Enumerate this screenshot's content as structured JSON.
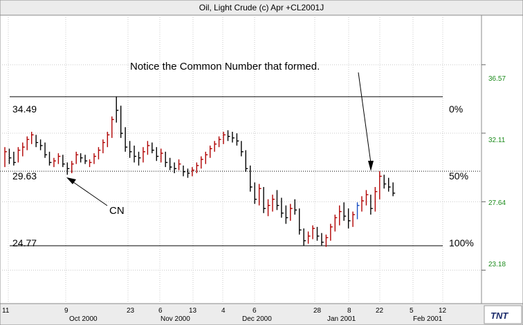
{
  "chart_data": {
    "type": "ohlc",
    "title": "Oil, Light Crude (c) Apr +CL2001J",
    "y_ticks": [
      "36.57",
      "32.11",
      "27.64",
      "23.18"
    ],
    "ylim": [
      21.0,
      39.8
    ],
    "x_day_labels": [
      "11",
      "9",
      "23",
      "6",
      "13",
      "4",
      "6",
      "28",
      "8",
      "22",
      "5",
      "12"
    ],
    "x_month_labels": [
      "Oct 2000",
      "Nov 2000",
      "Dec 2000",
      "Jan 2001",
      "Feb 2001"
    ],
    "grid": true,
    "levels": [
      {
        "value_label": "34.49",
        "percent_label": "0%",
        "value": 34.49,
        "style": "solid"
      },
      {
        "value_label": "29.63",
        "percent_label": "50%",
        "value": 29.63,
        "style": "dotted"
      },
      {
        "value_label": "24.77",
        "percent_label": "100%",
        "value": 24.77,
        "style": "solid"
      }
    ],
    "annotations": [
      {
        "text": "Notice the Common Number that formed.",
        "target": "Jan 2001 swing high at 29.63"
      },
      {
        "text": "CN",
        "target": "late Sep 2000 low at 29.63"
      }
    ],
    "series": [
      {
        "bars": [
          {
            "h": 31.2,
            "l": 29.9,
            "c": 30.9,
            "d": 1
          },
          {
            "h": 31.1,
            "l": 30.1,
            "c": 30.5,
            "d": 0
          },
          {
            "h": 30.9,
            "l": 30.0,
            "c": 30.2,
            "d": 0
          },
          {
            "h": 31.2,
            "l": 30.2,
            "c": 31.0,
            "d": 1
          },
          {
            "h": 31.5,
            "l": 30.6,
            "c": 31.2,
            "d": 1
          },
          {
            "h": 31.9,
            "l": 31.0,
            "c": 31.7,
            "d": 1
          },
          {
            "h": 32.2,
            "l": 31.4,
            "c": 32.0,
            "d": 1
          },
          {
            "h": 32.0,
            "l": 31.2,
            "c": 31.5,
            "d": 0
          },
          {
            "h": 31.7,
            "l": 31.0,
            "c": 31.3,
            "d": 0
          },
          {
            "h": 31.5,
            "l": 30.5,
            "c": 30.7,
            "d": 0
          },
          {
            "h": 30.9,
            "l": 30.0,
            "c": 30.2,
            "d": 0
          },
          {
            "h": 30.5,
            "l": 29.9,
            "c": 30.3,
            "d": 1
          },
          {
            "h": 30.8,
            "l": 30.1,
            "c": 30.6,
            "d": 1
          },
          {
            "h": 30.7,
            "l": 29.9,
            "c": 30.1,
            "d": 0
          },
          {
            "h": 30.2,
            "l": 29.4,
            "c": 29.8,
            "d": 0
          },
          {
            "h": 30.3,
            "l": 29.5,
            "c": 30.1,
            "d": 1
          },
          {
            "h": 30.9,
            "l": 30.1,
            "c": 30.7,
            "d": 1
          },
          {
            "h": 30.8,
            "l": 30.2,
            "c": 30.5,
            "d": 0
          },
          {
            "h": 30.7,
            "l": 30.1,
            "c": 30.3,
            "d": 0
          },
          {
            "h": 30.4,
            "l": 29.9,
            "c": 30.2,
            "d": 1
          },
          {
            "h": 30.8,
            "l": 30.1,
            "c": 30.6,
            "d": 1
          },
          {
            "h": 31.2,
            "l": 30.4,
            "c": 31.0,
            "d": 1
          },
          {
            "h": 31.7,
            "l": 30.8,
            "c": 31.5,
            "d": 1
          },
          {
            "h": 32.2,
            "l": 31.2,
            "c": 32.0,
            "d": 1
          },
          {
            "h": 33.2,
            "l": 31.8,
            "c": 33.0,
            "d": 1
          },
          {
            "h": 34.49,
            "l": 32.8,
            "c": 33.6,
            "d": 0
          },
          {
            "h": 33.9,
            "l": 31.8,
            "c": 32.1,
            "d": 0
          },
          {
            "h": 32.5,
            "l": 30.9,
            "c": 31.2,
            "d": 0
          },
          {
            "h": 31.6,
            "l": 30.5,
            "c": 30.9,
            "d": 0
          },
          {
            "h": 31.3,
            "l": 30.2,
            "c": 30.6,
            "d": 0
          },
          {
            "h": 30.9,
            "l": 30.0,
            "c": 30.5,
            "d": 0
          },
          {
            "h": 31.2,
            "l": 30.2,
            "c": 30.9,
            "d": 1
          },
          {
            "h": 31.6,
            "l": 30.7,
            "c": 31.3,
            "d": 1
          },
          {
            "h": 31.5,
            "l": 30.8,
            "c": 31.0,
            "d": 0
          },
          {
            "h": 31.2,
            "l": 30.3,
            "c": 30.6,
            "d": 0
          },
          {
            "h": 31.1,
            "l": 30.2,
            "c": 30.8,
            "d": 1
          },
          {
            "h": 30.9,
            "l": 29.9,
            "c": 30.2,
            "d": 0
          },
          {
            "h": 30.5,
            "l": 29.7,
            "c": 29.9,
            "d": 0
          },
          {
            "h": 30.2,
            "l": 29.5,
            "c": 29.8,
            "d": 0
          },
          {
            "h": 30.4,
            "l": 29.7,
            "c": 30.1,
            "d": 1
          },
          {
            "h": 30.0,
            "l": 29.3,
            "c": 29.6,
            "d": 0
          },
          {
            "h": 29.8,
            "l": 29.2,
            "c": 29.5,
            "d": 0
          },
          {
            "h": 29.9,
            "l": 29.3,
            "c": 29.7,
            "d": 1
          },
          {
            "h": 30.2,
            "l": 29.5,
            "c": 30.0,
            "d": 1
          },
          {
            "h": 30.6,
            "l": 29.8,
            "c": 30.4,
            "d": 1
          },
          {
            "h": 30.9,
            "l": 30.1,
            "c": 30.7,
            "d": 1
          },
          {
            "h": 31.3,
            "l": 30.5,
            "c": 31.1,
            "d": 1
          },
          {
            "h": 31.6,
            "l": 30.9,
            "c": 31.4,
            "d": 1
          },
          {
            "h": 31.9,
            "l": 31.2,
            "c": 31.7,
            "d": 1
          },
          {
            "h": 32.2,
            "l": 31.4,
            "c": 32.0,
            "d": 1
          },
          {
            "h": 32.3,
            "l": 31.6,
            "c": 31.9,
            "d": 0
          },
          {
            "h": 32.2,
            "l": 31.5,
            "c": 31.8,
            "d": 0
          },
          {
            "h": 32.1,
            "l": 31.3,
            "c": 31.6,
            "d": 0
          },
          {
            "h": 31.6,
            "l": 30.6,
            "c": 30.9,
            "d": 0
          },
          {
            "h": 31.0,
            "l": 29.6,
            "c": 29.8,
            "d": 0
          },
          {
            "h": 30.0,
            "l": 28.3,
            "c": 28.6,
            "d": 0
          },
          {
            "h": 28.9,
            "l": 27.5,
            "c": 27.8,
            "d": 0
          },
          {
            "h": 28.8,
            "l": 27.4,
            "c": 28.5,
            "d": 1
          },
          {
            "h": 28.6,
            "l": 26.9,
            "c": 27.2,
            "d": 0
          },
          {
            "h": 27.8,
            "l": 26.7,
            "c": 27.4,
            "d": 1
          },
          {
            "h": 28.1,
            "l": 27.0,
            "c": 27.8,
            "d": 1
          },
          {
            "h": 28.4,
            "l": 27.1,
            "c": 27.4,
            "d": 0
          },
          {
            "h": 27.9,
            "l": 26.6,
            "c": 26.9,
            "d": 0
          },
          {
            "h": 27.4,
            "l": 26.2,
            "c": 26.6,
            "d": 0
          },
          {
            "h": 27.5,
            "l": 26.4,
            "c": 27.2,
            "d": 1
          },
          {
            "h": 27.8,
            "l": 26.8,
            "c": 27.1,
            "d": 0
          },
          {
            "h": 27.2,
            "l": 25.5,
            "c": 25.8,
            "d": 0
          },
          {
            "h": 25.9,
            "l": 24.77,
            "c": 25.1,
            "d": 0
          },
          {
            "h": 25.7,
            "l": 24.9,
            "c": 25.4,
            "d": 1
          },
          {
            "h": 26.1,
            "l": 25.2,
            "c": 25.9,
            "d": 1
          },
          {
            "h": 26.0,
            "l": 25.1,
            "c": 25.4,
            "d": 0
          },
          {
            "h": 25.6,
            "l": 24.8,
            "c": 25.0,
            "d": 0
          },
          {
            "h": 25.5,
            "l": 24.7,
            "c": 25.3,
            "d": 1
          },
          {
            "h": 26.2,
            "l": 25.1,
            "c": 26.0,
            "d": 1
          },
          {
            "h": 26.8,
            "l": 25.7,
            "c": 26.6,
            "d": 1
          },
          {
            "h": 27.4,
            "l": 26.1,
            "c": 27.0,
            "d": 1
          },
          {
            "h": 27.6,
            "l": 26.4,
            "c": 26.7,
            "d": 0
          },
          {
            "h": 27.2,
            "l": 25.9,
            "c": 26.4,
            "d": 0
          },
          {
            "h": 27.0,
            "l": 26.0,
            "c": 26.8,
            "d": 1
          },
          {
            "h": 27.6,
            "l": 26.5,
            "c": 27.4,
            "d": 1
          },
          {
            "h": 28.0,
            "l": 27.0,
            "c": 27.7,
            "d": 1
          },
          {
            "h": 28.4,
            "l": 27.4,
            "c": 28.1,
            "d": 1
          },
          {
            "h": 28.1,
            "l": 26.8,
            "c": 27.2,
            "d": 0
          },
          {
            "h": 28.6,
            "l": 27.0,
            "c": 28.3,
            "d": 1
          },
          {
            "h": 29.63,
            "l": 27.8,
            "c": 29.3,
            "d": 1
          },
          {
            "h": 29.4,
            "l": 28.5,
            "c": 28.8,
            "d": 0
          },
          {
            "h": 29.2,
            "l": 28.3,
            "c": 28.6,
            "d": 0
          },
          {
            "h": 28.9,
            "l": 28.0,
            "c": 28.2,
            "d": 0
          }
        ]
      }
    ]
  },
  "colors": {
    "up": "#b00000",
    "down": "#000000",
    "special": "#1a4fc2",
    "tick_y": "#1a8a1a"
  },
  "logo": {
    "text": "TNT"
  }
}
